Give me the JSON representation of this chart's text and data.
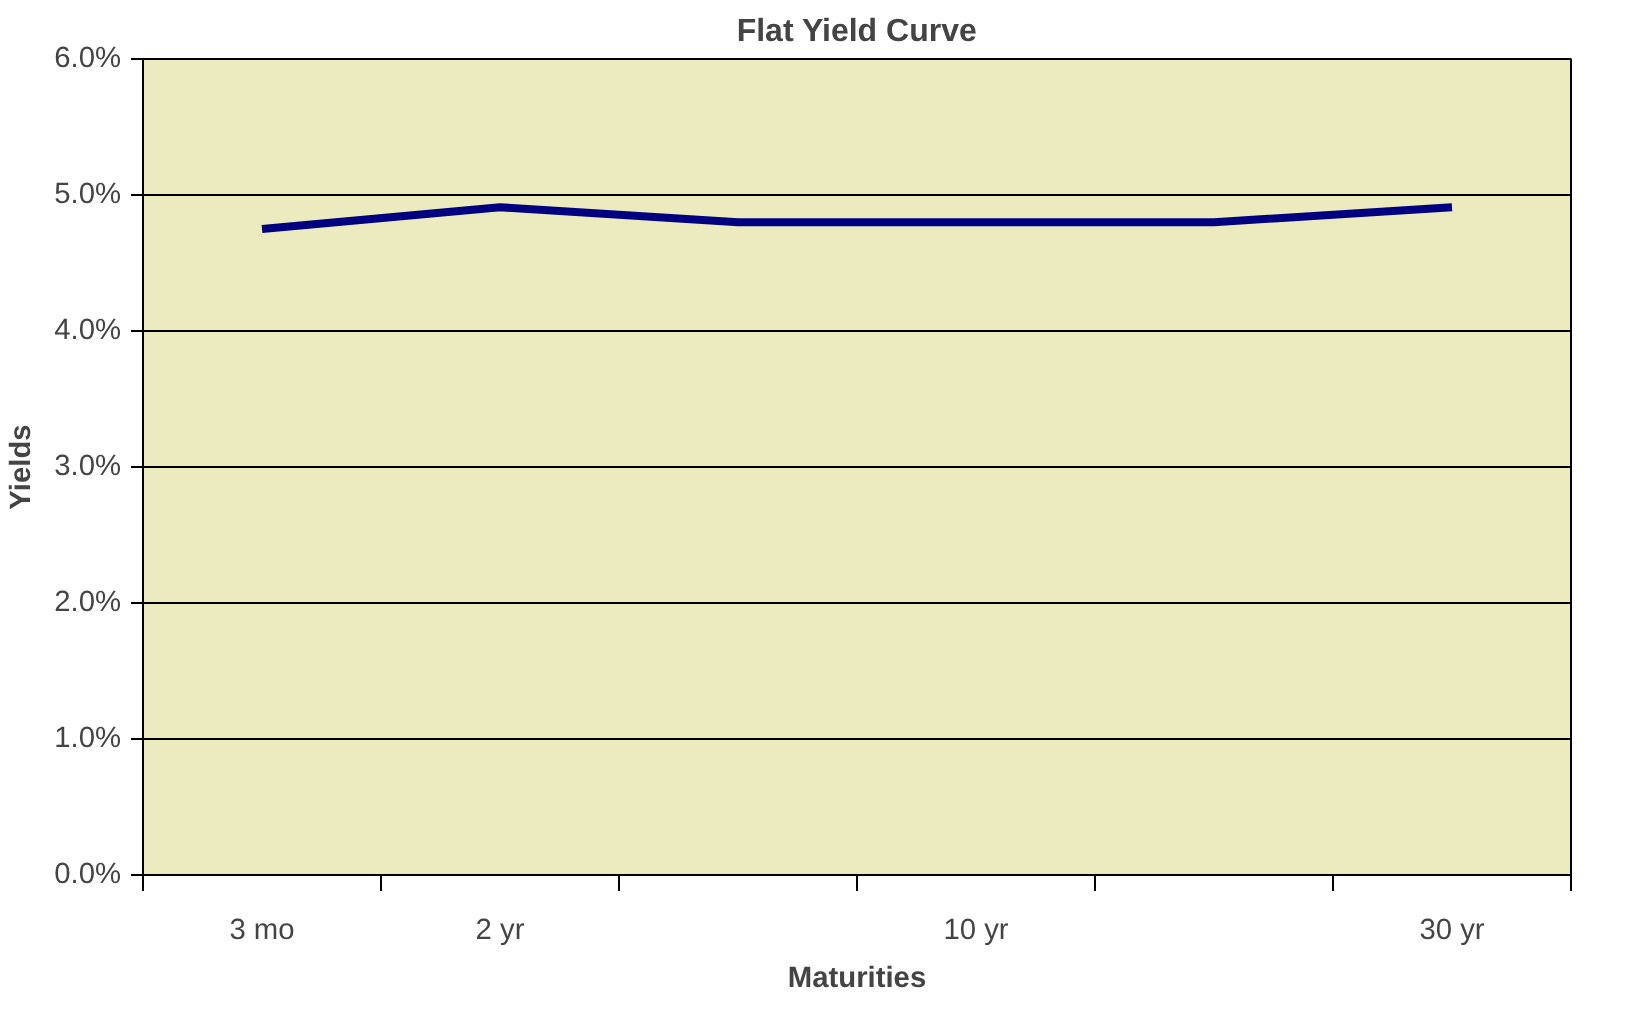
{
  "chart_data": {
    "type": "line",
    "title": "Flat Yield Curve",
    "xlabel": "Maturities",
    "ylabel": "Yields",
    "categories": [
      "3 mo",
      "2 yr",
      null,
      "10 yr",
      null,
      "30 yr"
    ],
    "series": [
      {
        "color": "#000080",
        "values": [
          4.75,
          4.91,
          4.8,
          4.8,
          4.8,
          4.91
        ]
      }
    ],
    "ylim": [
      0,
      6
    ],
    "yticks": [
      {
        "value": 0,
        "label": "0.0%"
      },
      {
        "value": 1,
        "label": "1.0%"
      },
      {
        "value": 2,
        "label": "2.0%"
      },
      {
        "value": 3,
        "label": "3.0%"
      },
      {
        "value": 4,
        "label": "4.0%"
      },
      {
        "value": 5,
        "label": "5.0%"
      },
      {
        "value": 6,
        "label": "6.0%"
      }
    ],
    "grid": "y",
    "marker": "none",
    "line_style": "solid"
  }
}
